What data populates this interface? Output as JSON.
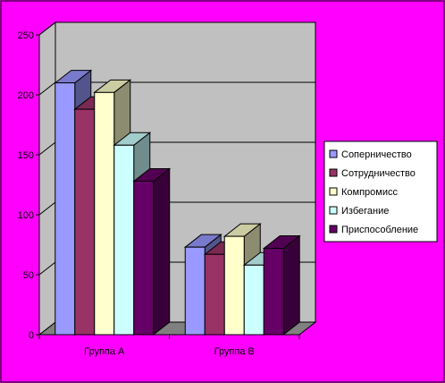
{
  "colors": {
    "background": "#ff00ff",
    "plot_wall": "#c0c0c0",
    "floor": "#808080",
    "legend_bg": "#ffffff",
    "border": "#000000"
  },
  "chart_data": {
    "type": "bar",
    "title": "",
    "xlabel": "",
    "ylabel": "",
    "ylim": [
      0,
      250
    ],
    "yticks": [
      "0",
      "50",
      "100",
      "150",
      "200",
      "250"
    ],
    "grid": true,
    "legend_position": "right",
    "categories": [
      "Группа А",
      "Группа В"
    ],
    "series": [
      {
        "name": "Соперничество",
        "color": "#9999ff",
        "values": [
          210,
          73
        ]
      },
      {
        "name": "Сотрудничество",
        "color": "#993366",
        "values": [
          188,
          67
        ]
      },
      {
        "name": "Компромисс",
        "color": "#ffffcc",
        "values": [
          202,
          82
        ]
      },
      {
        "name": "Избегание",
        "color": "#ccffff",
        "values": [
          158,
          58
        ]
      },
      {
        "name": "Приспособление",
        "color": "#660066",
        "values": [
          128,
          72
        ]
      }
    ]
  }
}
